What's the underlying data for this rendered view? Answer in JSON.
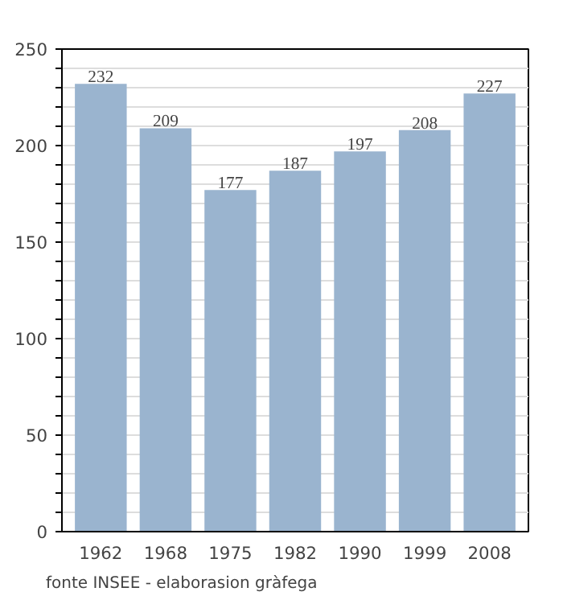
{
  "chart_data": {
    "type": "bar",
    "categories": [
      "1962",
      "1968",
      "1975",
      "1982",
      "1990",
      "1999",
      "2008"
    ],
    "values": [
      232,
      209,
      177,
      187,
      197,
      208,
      227
    ],
    "color": "#9ab4cf",
    "data_labels": true,
    "grid": "y",
    "ylim": [
      0,
      250
    ],
    "yticks": [
      0,
      {
        "value": 10,
        "label": null
      },
      {
        "value": 20,
        "label": null
      },
      {
        "value": 30,
        "label": null
      },
      {
        "value": 40,
        "label": null
      },
      50,
      {
        "value": 60,
        "label": null
      },
      {
        "value": 70,
        "label": null
      },
      {
        "value": 80,
        "label": null
      },
      {
        "value": 90,
        "label": null
      },
      100,
      {
        "value": 110,
        "label": null
      },
      {
        "value": 120,
        "label": null
      },
      {
        "value": 130,
        "label": null
      },
      {
        "value": 140,
        "label": null
      },
      150,
      {
        "value": 160,
        "label": null
      },
      {
        "value": 170,
        "label": null
      },
      {
        "value": 180,
        "label": null
      },
      {
        "value": 190,
        "label": null
      },
      200,
      {
        "value": 210,
        "label": null
      },
      {
        "value": 220,
        "label": null
      },
      {
        "value": 230,
        "label": null
      },
      {
        "value": 240,
        "label": null
      },
      250
    ],
    "annotations": [
      "fonte INSEE - elaborasion gràfega"
    ]
  }
}
